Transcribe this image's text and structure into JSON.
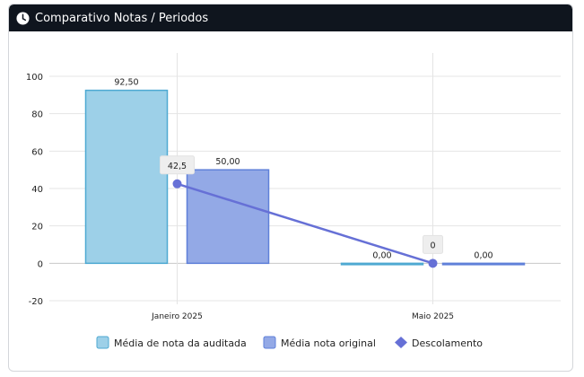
{
  "header": {
    "title": "Comparativo Notas / Periodos",
    "icon": "clock-icon"
  },
  "colors": {
    "header_bg": "#0f151e",
    "series_auditada_fill": "#9dd0e8",
    "series_auditada_stroke": "#4ea9d2",
    "series_original_fill": "#93a9e6",
    "series_original_stroke": "#5f80d9",
    "series_descolamento": "#6670d6"
  },
  "chart_data": {
    "type": "bar",
    "categories": [
      "Janeiro 2025",
      "Maio 2025"
    ],
    "ylim": [
      -20,
      100
    ],
    "yticks": [
      -20,
      0,
      20,
      40,
      60,
      80,
      100
    ],
    "grid": true,
    "legend_position": "bottom",
    "series": [
      {
        "name": "Média de nota da auditada",
        "kind": "bar",
        "values": [
          92.5,
          0
        ],
        "labels": [
          "92,50",
          "0,00"
        ]
      },
      {
        "name": "Média nota original",
        "kind": "bar",
        "values": [
          50,
          0
        ],
        "labels": [
          "50,00",
          "0,00"
        ]
      },
      {
        "name": "Descolamento",
        "kind": "line",
        "values": [
          42.5,
          0
        ],
        "labels": [
          "42,5",
          "0"
        ]
      }
    ]
  }
}
